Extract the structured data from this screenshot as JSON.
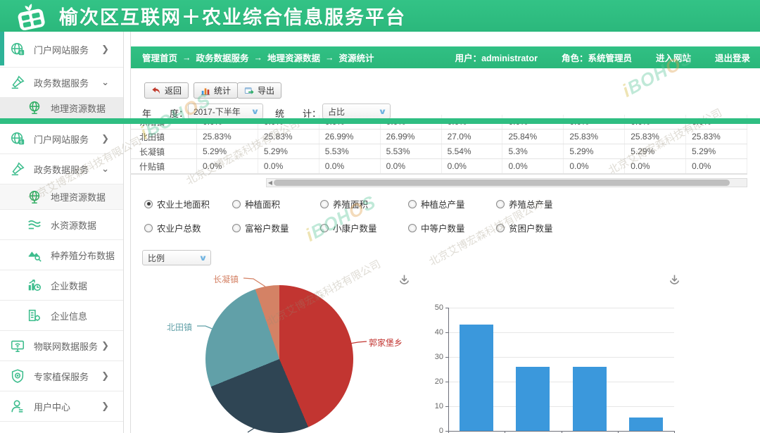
{
  "header": {
    "title": "榆次区互联网＋农业综合信息服务平台"
  },
  "topbar": {
    "breadcrumb": [
      "管理首页",
      "政务数据服务",
      "地理资源数据",
      "资源统计"
    ],
    "separator": "→",
    "user_label": "用户：administrator",
    "role_label": "角色：系统管理员",
    "enter_site": "进入网站",
    "logout": "退出登录"
  },
  "sidebar": {
    "top_items": [
      {
        "label": "门户网站服务",
        "icon": "portal-globe-icon",
        "chevron": "❯",
        "sub": false,
        "active": false
      },
      {
        "label": "政务数据服务",
        "icon": "gov-stamp-icon",
        "chevron": "⌄",
        "sub": false,
        "active": false
      },
      {
        "label": "地理资源数据",
        "icon": "geo-globe-icon",
        "chevron": "",
        "sub": true,
        "active": true
      }
    ],
    "bottom_items": [
      {
        "label": "门户网站服务",
        "icon": "portal-globe-icon",
        "chevron": "❯",
        "sub": false,
        "active": false
      },
      {
        "label": "政务数据服务",
        "icon": "gov-stamp-icon",
        "chevron": "⌄",
        "sub": false,
        "active": false
      },
      {
        "label": "地理资源数据",
        "icon": "geo-globe-icon",
        "chevron": "",
        "sub": true,
        "active": false,
        "subtle": true
      },
      {
        "label": "水资源数据",
        "icon": "water-icon",
        "chevron": "",
        "sub": true,
        "active": false
      },
      {
        "label": "种养殖分布数据",
        "icon": "farm-distribution-icon",
        "chevron": "",
        "sub": true,
        "active": false
      },
      {
        "label": "企业数据",
        "icon": "enterprise-data-icon",
        "chevron": "",
        "sub": true,
        "active": false
      },
      {
        "label": "企业信息",
        "icon": "enterprise-info-icon",
        "chevron": "",
        "sub": true,
        "active": false
      },
      {
        "label": "物联网数据服务",
        "icon": "iot-monitor-icon",
        "chevron": "❯",
        "sub": false,
        "active": false
      },
      {
        "label": "专家植保服务",
        "icon": "shield-expert-icon",
        "chevron": "❯",
        "sub": false,
        "active": false
      },
      {
        "label": "用户中心",
        "icon": "user-icon",
        "chevron": "❯",
        "sub": false,
        "active": false
      }
    ]
  },
  "toolbar": {
    "back": "返回",
    "stats": "统计",
    "export": "导出"
  },
  "filters": {
    "year_label": "年　　度：",
    "year_value": "2017-下半年",
    "stat_label": "统　　计：",
    "stat_value": "占比"
  },
  "table": {
    "rows": [
      {
        "name": "东阳镇",
        "values": [
          "0.0%",
          "0.0%",
          "0.0%",
          "0.0%",
          "0.0%",
          "0.0%",
          "0.0%",
          "0.0%",
          "0.0%"
        ]
      },
      {
        "name": "北田镇",
        "values": [
          "25.83%",
          "25.83%",
          "26.99%",
          "26.99%",
          "27.0%",
          "25.84%",
          "25.83%",
          "25.83%",
          "25.83%"
        ]
      },
      {
        "name": "长凝镇",
        "values": [
          "5.29%",
          "5.29%",
          "5.53%",
          "5.53%",
          "5.54%",
          "5.3%",
          "5.29%",
          "5.29%",
          "5.29%"
        ]
      },
      {
        "name": "什贴镇",
        "values": [
          "0.0%",
          "0.0%",
          "0.0%",
          "0.0%",
          "0.0%",
          "0.0%",
          "0.0%",
          "0.0%",
          "0.0%"
        ]
      }
    ]
  },
  "radio_groups": {
    "row1": [
      {
        "label": "农业土地面积",
        "selected": true
      },
      {
        "label": "种植面积",
        "selected": false
      },
      {
        "label": "养殖面积",
        "selected": false
      },
      {
        "label": "种植总产量",
        "selected": false
      },
      {
        "label": "养殖总产量",
        "selected": false
      }
    ],
    "row2": [
      {
        "label": "农业户总数",
        "selected": false
      },
      {
        "label": "富裕户数量",
        "selected": false
      },
      {
        "label": "小康户数量",
        "selected": false
      },
      {
        "label": "中等户数量",
        "selected": false
      },
      {
        "label": "贫困户数量",
        "selected": false
      }
    ]
  },
  "ratio_select": {
    "value": "比例"
  },
  "chart_data": [
    {
      "type": "pie",
      "series": [
        {
          "name": "郭家堡乡",
          "value": 43.6,
          "color": "#c23531",
          "label_visible": true
        },
        {
          "name": "",
          "value": 25.3,
          "color": "#2f4554",
          "label_visible": false
        },
        {
          "name": "北田镇",
          "value": 25.8,
          "color": "#61a0a8",
          "label_visible": true
        },
        {
          "name": "长凝镇",
          "value": 5.3,
          "color": "#d48265",
          "label_visible": true
        }
      ],
      "legend_position": "none",
      "note": "bottom label clipped by viewport"
    },
    {
      "type": "bar",
      "categories": [
        "",
        "",
        "",
        ""
      ],
      "values": [
        43.1,
        26,
        26,
        5.4
      ],
      "ylim": [
        0,
        50
      ],
      "yticks": [
        50,
        40,
        30,
        20,
        10,
        0
      ],
      "bar_color": "#3b98dc",
      "grid": true,
      "legend_position": "none"
    }
  ],
  "watermark": {
    "company": "北京艾博宏森科技有限公司",
    "brand": "iBOHOS"
  },
  "colors": {
    "brand_green": "#2fbe82",
    "bar_blue": "#3b98dc"
  }
}
